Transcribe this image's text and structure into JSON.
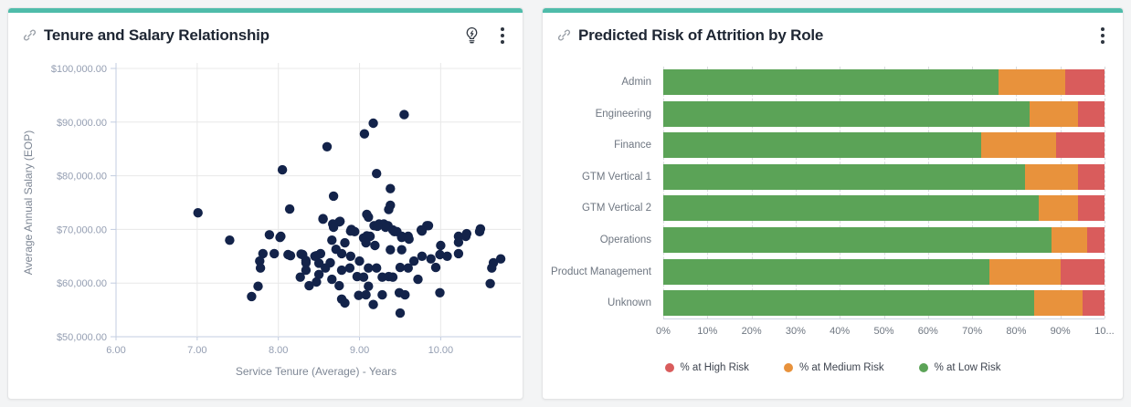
{
  "page": {
    "background": "#f3f4f5",
    "accent_color": "#4fbcaa"
  },
  "panels": [
    {
      "title": "Tenure and Salary Relationship",
      "title_icon": "link-icon",
      "action_icons": [
        "lightbulb-icon",
        "kebab-menu-icon"
      ]
    },
    {
      "title": "Predicted Risk of Attrition by Role",
      "title_icon": "link-icon",
      "action_icons": [
        "kebab-menu-icon"
      ]
    }
  ],
  "chart_data": [
    {
      "type": "scatter",
      "title": "Tenure and Salary Relationship",
      "xlabel": "Service Tenure (Average) - Years",
      "ylabel": "Average Annual Salary (EOP)",
      "xlim": [
        6,
        10.93
      ],
      "ylim": [
        50000,
        100000
      ],
      "x_ticks": [
        6,
        7,
        8,
        9,
        10
      ],
      "x_tick_labels": [
        "6.00",
        "7.00",
        "8.00",
        "9.00",
        "10.00"
      ],
      "y_ticks": [
        50000,
        60000,
        70000,
        80000,
        90000,
        100000
      ],
      "y_tick_labels": [
        "$50,000.00",
        "$60,000.00",
        "$70,000.00",
        "$80,000.00",
        "$90,000.00",
        "$100,000.00"
      ],
      "point_color": "#13234a",
      "grid": true,
      "points": [
        [
          9.55,
          91400
        ],
        [
          9.17,
          89800
        ],
        [
          9.06,
          87800
        ],
        [
          8.6,
          85400
        ],
        [
          8.05,
          81100
        ],
        [
          9.21,
          80400
        ],
        [
          9.38,
          77600
        ],
        [
          8.68,
          76200
        ],
        [
          9.38,
          74500
        ],
        [
          8.14,
          73800
        ],
        [
          9.36,
          73700
        ],
        [
          7.01,
          73100
        ],
        [
          9.11,
          72300
        ],
        [
          8.55,
          72000
        ],
        [
          9.09,
          72800
        ],
        [
          8.55,
          71900
        ],
        [
          8.76,
          71500
        ],
        [
          8.75,
          71400
        ],
        [
          8.67,
          71000
        ],
        [
          9.24,
          71000
        ],
        [
          9.3,
          71000
        ],
        [
          8.9,
          70000
        ],
        [
          9.18,
          70700
        ],
        [
          9.35,
          70700
        ],
        [
          9.83,
          70700
        ],
        [
          8.68,
          70400
        ],
        [
          9.32,
          70400
        ],
        [
          9.22,
          70600
        ],
        [
          9.43,
          69600
        ],
        [
          8.94,
          69600
        ],
        [
          9.46,
          69600
        ],
        [
          10.48,
          69600
        ],
        [
          8.89,
          69700
        ],
        [
          9.77,
          69700
        ],
        [
          9.41,
          69900
        ],
        [
          9.76,
          69900
        ],
        [
          7.89,
          69000
        ],
        [
          10.49,
          70100
        ],
        [
          9.85,
          70700
        ],
        [
          7.4,
          68000
        ],
        [
          8.03,
          68700
        ],
        [
          9.05,
          68400
        ],
        [
          8.66,
          68000
        ],
        [
          9.52,
          68700
        ],
        [
          9.6,
          68700
        ],
        [
          9.13,
          68700
        ],
        [
          10.22,
          68700
        ],
        [
          10.31,
          68700
        ],
        [
          9.52,
          68500
        ],
        [
          8.02,
          68500
        ],
        [
          9.09,
          68800
        ],
        [
          9.61,
          68200
        ],
        [
          10.32,
          69200
        ],
        [
          8.82,
          67500
        ],
        [
          9.08,
          67500
        ],
        [
          8.71,
          66300
        ],
        [
          9.19,
          67000
        ],
        [
          9.38,
          66200
        ],
        [
          9.52,
          66200
        ],
        [
          10.0,
          67000
        ],
        [
          10.22,
          67600
        ],
        [
          7.81,
          65500
        ],
        [
          7.95,
          65500
        ],
        [
          8.12,
          65300
        ],
        [
          8.3,
          65300
        ],
        [
          8.45,
          65000
        ],
        [
          8.52,
          65500
        ],
        [
          8.78,
          65500
        ],
        [
          8.89,
          65000
        ],
        [
          10.22,
          65500
        ],
        [
          9.99,
          65300
        ],
        [
          9.77,
          65000
        ],
        [
          10.08,
          65000
        ],
        [
          8.15,
          65100
        ],
        [
          8.28,
          65400
        ],
        [
          8.47,
          65100
        ],
        [
          7.77,
          64100
        ],
        [
          8.34,
          63800
        ],
        [
          8.64,
          63800
        ],
        [
          9.0,
          64100
        ],
        [
          9.67,
          64100
        ],
        [
          9.88,
          64500
        ],
        [
          10.65,
          63800
        ],
        [
          10.74,
          64500
        ],
        [
          8.34,
          64200
        ],
        [
          8.5,
          63700
        ],
        [
          7.78,
          62800
        ],
        [
          8.34,
          62400
        ],
        [
          8.58,
          62800
        ],
        [
          8.78,
          62400
        ],
        [
          8.88,
          62800
        ],
        [
          9.11,
          62800
        ],
        [
          9.21,
          62800
        ],
        [
          9.5,
          62900
        ],
        [
          9.6,
          62800
        ],
        [
          9.94,
          62900
        ],
        [
          10.63,
          62800
        ],
        [
          8.27,
          61100
        ],
        [
          8.38,
          59500
        ],
        [
          8.47,
          60200
        ],
        [
          8.5,
          61600
        ],
        [
          8.66,
          60700
        ],
        [
          8.97,
          61200
        ],
        [
          9.05,
          61100
        ],
        [
          9.28,
          61100
        ],
        [
          9.36,
          61200
        ],
        [
          9.41,
          61100
        ],
        [
          9.72,
          60700
        ],
        [
          7.75,
          59400
        ],
        [
          7.67,
          57500
        ],
        [
          8.75,
          59500
        ],
        [
          8.78,
          57000
        ],
        [
          8.99,
          57700
        ],
        [
          9.11,
          59400
        ],
        [
          9.08,
          57800
        ],
        [
          9.28,
          57800
        ],
        [
          9.49,
          58200
        ],
        [
          9.56,
          57800
        ],
        [
          9.99,
          58200
        ],
        [
          10.61,
          59900
        ],
        [
          9.17,
          56000
        ],
        [
          8.82,
          56300
        ],
        [
          9.5,
          54400
        ]
      ]
    },
    {
      "type": "bar",
      "orientation": "horizontal",
      "stacked": true,
      "title": "Predicted Risk of Attrition by Role",
      "categories": [
        "Admin",
        "Engineering",
        "Finance",
        "GTM Vertical 1",
        "GTM Vertical 2",
        "Operations",
        "Product Management",
        "Unknown"
      ],
      "series": [
        {
          "name": "% at Low Risk",
          "color": "#5ba357",
          "values": [
            76,
            83,
            72,
            82,
            85,
            88,
            74,
            84
          ]
        },
        {
          "name": "% at Medium Risk",
          "color": "#e8923c",
          "values": [
            15,
            11,
            17,
            12,
            9,
            8,
            16,
            11
          ]
        },
        {
          "name": "% at High Risk",
          "color": "#d95c5c",
          "values": [
            9,
            6,
            11,
            6,
            6,
            4,
            10,
            5
          ]
        }
      ],
      "legend": [
        {
          "label": "% at High Risk",
          "color": "#d95c5c"
        },
        {
          "label": "% at Medium Risk",
          "color": "#e8923c"
        },
        {
          "label": "% at Low Risk",
          "color": "#5ba357"
        }
      ],
      "legend_position": "bottom",
      "xlim": [
        0,
        100
      ],
      "x_tick_labels": [
        "0%",
        "10%",
        "20%",
        "30%",
        "40%",
        "50%",
        "60%",
        "70%",
        "80%",
        "90%",
        "10..."
      ],
      "grid": true
    }
  ]
}
